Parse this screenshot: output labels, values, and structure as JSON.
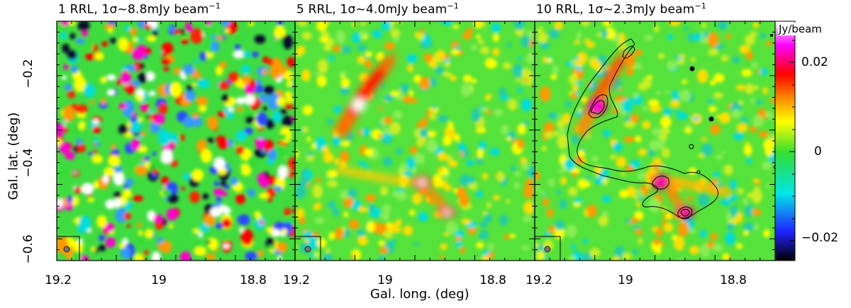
{
  "panels": [
    {
      "title_main": "1 RRL, 1σ~8.8mJy beam",
      "title_sup": "−1"
    },
    {
      "title_main": "5 RRL, 1σ~4.0mJy beam",
      "title_sup": "−1"
    },
    {
      "title_main": "10 RRL, 1σ~2.3mJy beam",
      "title_sup": "−1"
    }
  ],
  "axes": {
    "xlabel": "Gal. long. (deg)",
    "ylabel": "Gal. lat. (deg)",
    "x_ticks": [
      "19.2",
      "19",
      "18.8"
    ],
    "y_ticks": [
      "−0.2",
      "−0.4",
      "−0.6"
    ]
  },
  "colorbar": {
    "unit": "Jy/beam",
    "ticks": [
      "0.02",
      "0",
      "−0.02"
    ],
    "colors": [
      "#000000",
      "#1a1aff",
      "#00e6e6",
      "#33dd33",
      "#ffff00",
      "#ff8800",
      "#ff0000",
      "#ff00ff",
      "#ffffff"
    ]
  }
}
